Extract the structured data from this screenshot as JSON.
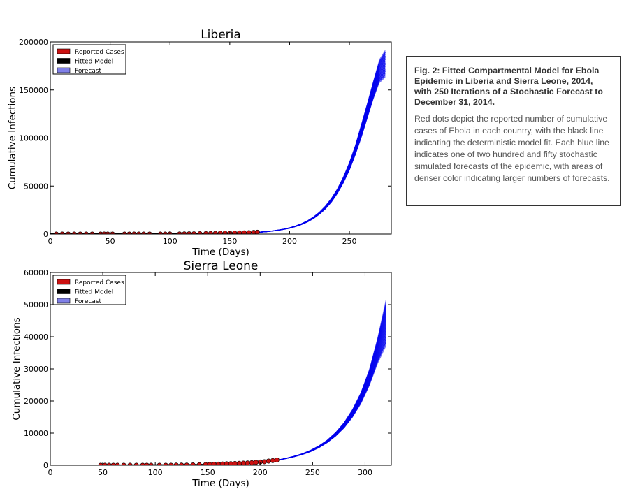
{
  "caption": {
    "title": "Fig. 2: Fitted Compartmental Model for Ebola Epidemic in Liberia and Sierra Leone, 2014, with 250 Iterations of a Stochastic Forecast to December 31, 2014.",
    "body": "Red dots depict the reported number of cumulative cases of Ebola in each country, with the black line indicating the deterministic model fit. Each blue line indicates one of two hundred and fifty stochastic simulated forecasts of the epidemic, with areas of denser color indicating larger numbers of forecasts."
  },
  "colors": {
    "reported": "#cc1111",
    "fitted": "#000000",
    "forecast": "#0000ee",
    "forecast_legend": "#8080e8"
  },
  "chart_data": [
    {
      "type": "line",
      "title": "Liberia",
      "xlabel": "Time (Days)",
      "ylabel": "Cumulative Infections",
      "xlim": [
        0,
        285
      ],
      "ylim": [
        0,
        200000
      ],
      "xticks": [
        0,
        50,
        100,
        150,
        200,
        250
      ],
      "yticks": [
        0,
        50000,
        100000,
        150000,
        200000
      ],
      "grid": false,
      "legend_position": "top-left",
      "legend": [
        "Reported Cases",
        "Fitted Model",
        "Forecast"
      ],
      "series": [
        {
          "name": "Reported Cases",
          "kind": "scatter",
          "points": [
            [
              5,
              0
            ],
            [
              10,
              0
            ],
            [
              15,
              0
            ],
            [
              20,
              0
            ],
            [
              25,
              0
            ],
            [
              30,
              0
            ],
            [
              35,
              0
            ],
            [
              42,
              0
            ],
            [
              45,
              0
            ],
            [
              48,
              0
            ],
            [
              52,
              0
            ],
            [
              62,
              0
            ],
            [
              66,
              0
            ],
            [
              70,
              0
            ],
            [
              74,
              0
            ],
            [
              78,
              0
            ],
            [
              83,
              0
            ],
            [
              92,
              0
            ],
            [
              96,
              0
            ],
            [
              100,
              50
            ],
            [
              108,
              100
            ],
            [
              112,
              150
            ],
            [
              116,
              250
            ],
            [
              120,
              300
            ],
            [
              125,
              400
            ],
            [
              130,
              500
            ],
            [
              134,
              600
            ],
            [
              138,
              700
            ],
            [
              142,
              800
            ],
            [
              146,
              900
            ],
            [
              150,
              1000
            ],
            [
              154,
              1100
            ],
            [
              158,
              1200
            ],
            [
              162,
              1300
            ],
            [
              166,
              1500
            ],
            [
              170,
              1700
            ],
            [
              173,
              1900
            ]
          ]
        },
        {
          "name": "Fitted Model",
          "kind": "line",
          "points": [
            [
              0,
              0
            ],
            [
              40,
              0
            ],
            [
              60,
              0
            ],
            [
              80,
              0
            ],
            [
              100,
              100
            ],
            [
              110,
              200
            ],
            [
              120,
              300
            ],
            [
              130,
              500
            ],
            [
              140,
              700
            ],
            [
              150,
              900
            ],
            [
              160,
              1200
            ],
            [
              170,
              1700
            ],
            [
              175,
              2000
            ]
          ]
        },
        {
          "name": "Forecast",
          "kind": "band",
          "x": [
            175,
            180,
            185,
            190,
            195,
            200,
            205,
            210,
            215,
            220,
            225,
            230,
            235,
            240,
            245,
            250,
            255,
            260,
            265,
            270,
            275,
            280
          ],
          "low": [
            2000,
            2400,
            3000,
            3800,
            4800,
            6000,
            7700,
            9800,
            12500,
            16000,
            20500,
            26000,
            33000,
            42000,
            53000,
            66000,
            82000,
            100000,
            120000,
            140000,
            157000,
            163000
          ],
          "high": [
            2000,
            2500,
            3200,
            4100,
            5200,
            6600,
            8500,
            10900,
            14000,
            18000,
            23000,
            29500,
            37500,
            47500,
            60000,
            75000,
            93000,
            115000,
            137000,
            160000,
            182000,
            192000
          ]
        }
      ]
    },
    {
      "type": "line",
      "title": "Sierra Leone",
      "xlabel": "Time (Days)",
      "ylabel": "Cumulative Infections",
      "xlim": [
        0,
        325
      ],
      "ylim": [
        0,
        60000
      ],
      "xticks": [
        0,
        50,
        100,
        150,
        200,
        250,
        300
      ],
      "yticks": [
        0,
        10000,
        20000,
        30000,
        40000,
        50000,
        60000
      ],
      "grid": false,
      "legend_position": "top-left",
      "legend": [
        "Reported Cases",
        "Fitted Model",
        "Forecast"
      ],
      "series": [
        {
          "name": "Reported Cases",
          "kind": "scatter",
          "points": [
            [
              48,
              0
            ],
            [
              52,
              0
            ],
            [
              56,
              0
            ],
            [
              60,
              0
            ],
            [
              64,
              0
            ],
            [
              70,
              0
            ],
            [
              76,
              0
            ],
            [
              82,
              0
            ],
            [
              88,
              0
            ],
            [
              92,
              0
            ],
            [
              96,
              0
            ],
            [
              104,
              0
            ],
            [
              110,
              0
            ],
            [
              115,
              0
            ],
            [
              120,
              50
            ],
            [
              125,
              50
            ],
            [
              130,
              50
            ],
            [
              136,
              100
            ],
            [
              142,
              150
            ],
            [
              148,
              200
            ],
            [
              152,
              250
            ],
            [
              156,
              300
            ],
            [
              160,
              350
            ],
            [
              164,
              400
            ],
            [
              168,
              450
            ],
            [
              172,
              500
            ],
            [
              176,
              550
            ],
            [
              180,
              600
            ],
            [
              184,
              650
            ],
            [
              188,
              700
            ],
            [
              192,
              800
            ],
            [
              196,
              900
            ],
            [
              200,
              1000
            ],
            [
              204,
              1100
            ],
            [
              208,
              1300
            ],
            [
              212,
              1450
            ],
            [
              216,
              1650
            ]
          ]
        },
        {
          "name": "Fitted Model",
          "kind": "line",
          "points": [
            [
              0,
              0
            ],
            [
              50,
              0
            ],
            [
              90,
              50
            ],
            [
              120,
              100
            ],
            [
              140,
              150
            ],
            [
              160,
              300
            ],
            [
              180,
              600
            ],
            [
              200,
              1000
            ],
            [
              210,
              1300
            ],
            [
              218,
              1700
            ]
          ]
        },
        {
          "name": "Forecast",
          "kind": "band",
          "x": [
            218,
            225,
            232,
            240,
            248,
            256,
            264,
            272,
            280,
            288,
            296,
            304,
            312,
            320
          ],
          "low": [
            1700,
            2100,
            2600,
            3300,
            4200,
            5400,
            7000,
            9000,
            11500,
            14800,
            19000,
            24500,
            31500,
            37000
          ],
          "high": [
            1700,
            2200,
            2800,
            3600,
            4700,
            6100,
            7900,
            10300,
            13400,
            17500,
            22800,
            30000,
            40000,
            52000
          ]
        }
      ]
    }
  ]
}
